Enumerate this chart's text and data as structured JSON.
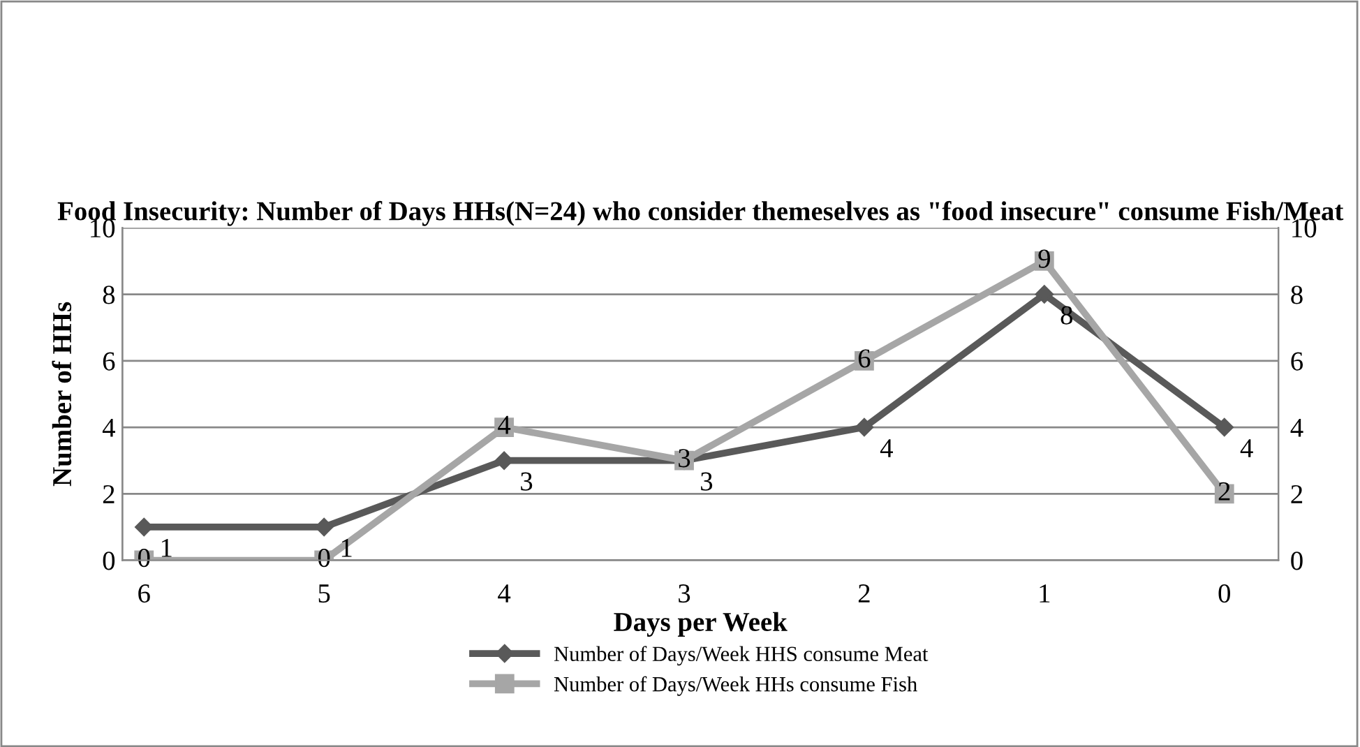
{
  "chart_data": {
    "type": "line",
    "title": "Food Insecurity: Number of Days HHs(N=24) who consider themeselves as \"food insecure\" consume Fish/Meat",
    "xlabel": "Days per Week",
    "ylabel": "Number of HHs",
    "categories": [
      "6",
      "5",
      "4",
      "3",
      "2",
      "1",
      "0"
    ],
    "series": [
      {
        "name": "Number of Days/Week HHS consume Meat",
        "color": "#595959",
        "marker": "diamond",
        "values": [
          1,
          1,
          3,
          3,
          4,
          8,
          4
        ]
      },
      {
        "name": "Number of Days/Week HHs consume Fish",
        "color": "#a6a6a6",
        "marker": "square",
        "values": [
          0,
          0,
          4,
          3,
          6,
          9,
          2
        ]
      }
    ],
    "ylim": [
      0,
      10
    ],
    "yticks": [
      0,
      2,
      4,
      6,
      8,
      10
    ],
    "y2lim": [
      0,
      10
    ],
    "y2ticks": [
      0,
      2,
      4,
      6,
      8,
      10
    ],
    "grid": "y",
    "legend": "bottom",
    "data_labels": true,
    "line_style": "solid"
  }
}
